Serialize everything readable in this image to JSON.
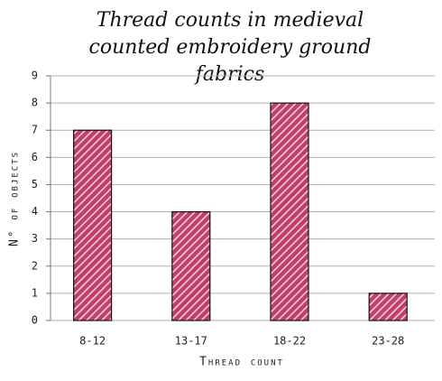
{
  "chart_data": {
    "type": "bar",
    "title": "Thread counts in medieval counted embroidery ground fabrics",
    "x_label": "Thread count",
    "y_label": "N° of objects",
    "categories": [
      "8-12",
      "13-17",
      "18-22",
      "23-28"
    ],
    "values": [
      7,
      4,
      8,
      1
    ],
    "color": "#c0406a",
    "ylim": [
      0,
      9
    ],
    "yticks": [
      0,
      1,
      2,
      3,
      4,
      5,
      6,
      7,
      8,
      9
    ],
    "grid": true
  }
}
